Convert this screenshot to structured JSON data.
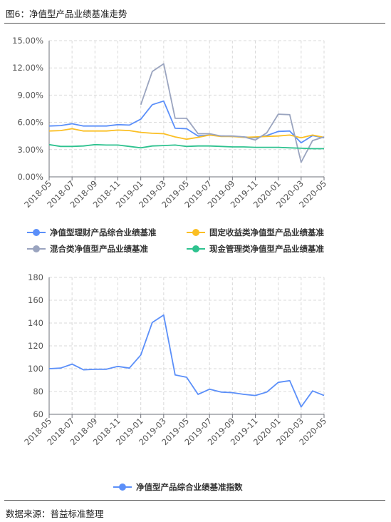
{
  "header": {
    "title": "图6：净值型产品业绩基准走势"
  },
  "footer": {
    "source": "数据来源：普益标准整理"
  },
  "colors": {
    "blue": "#5b8ff9",
    "yellow": "#fbbf24",
    "gray": "#9aa4bf",
    "green": "#2ec28f",
    "grid": "#d9d9d9",
    "axis": "#6e7079"
  },
  "chart_data": [
    {
      "type": "line",
      "categories": [
        "2018-05",
        "2018-06",
        "2018-07",
        "2018-08",
        "2018-09",
        "2018-10",
        "2018-11",
        "2018-12",
        "2019-01",
        "2019-02",
        "2019-03",
        "2019-04",
        "2019-05",
        "2019-06",
        "2019-07",
        "2019-08",
        "2019-09",
        "2019-10",
        "2019-11",
        "2019-12",
        "2020-01",
        "2020-02",
        "2020-03",
        "2020-04",
        "2020-05"
      ],
      "tick_labels": [
        "2018-05",
        "2018-07",
        "2018-09",
        "2018-11",
        "2019-01",
        "2019-03",
        "2019-05",
        "2019-07",
        "2019-09",
        "2019-11",
        "2020-01",
        "2020-03",
        "2020-05"
      ],
      "y_ticks": [
        "0.00%",
        "3.00%",
        "6.00%",
        "9.00%",
        "12.00%",
        "15.00%"
      ],
      "ylim": [
        0,
        15
      ],
      "grid": true,
      "legend_position": "bottom",
      "series": [
        {
          "name": "净值型理财产品综合业绩基准",
          "color": "blue",
          "values": [
            5.6,
            5.65,
            5.85,
            5.6,
            5.6,
            5.6,
            5.75,
            5.7,
            6.35,
            7.95,
            8.35,
            5.35,
            5.3,
            4.5,
            4.6,
            4.5,
            4.45,
            4.4,
            4.3,
            4.55,
            5.0,
            5.05,
            3.75,
            4.55,
            4.3
          ]
        },
        {
          "name": "固定收益类净值型产品业绩基准",
          "color": "yellow",
          "values": [
            5.05,
            5.1,
            5.3,
            5.05,
            5.05,
            5.05,
            5.15,
            5.1,
            4.9,
            4.8,
            4.75,
            4.4,
            4.15,
            4.35,
            4.6,
            4.45,
            4.45,
            4.35,
            4.4,
            4.45,
            4.5,
            4.6,
            4.3,
            4.6,
            4.35
          ]
        },
        {
          "name": "混合类净值型产品业绩基准",
          "color": "gray",
          "values": [
            null,
            null,
            null,
            null,
            null,
            null,
            null,
            null,
            7.95,
            11.6,
            12.45,
            6.45,
            6.45,
            4.75,
            4.75,
            4.5,
            4.5,
            4.4,
            4.05,
            4.85,
            6.9,
            6.85,
            1.6,
            4.0,
            4.4
          ]
        },
        {
          "name": "现金管理类净值型产品业绩基准",
          "color": "green",
          "values": [
            3.55,
            3.35,
            3.35,
            3.4,
            3.55,
            3.5,
            3.5,
            3.35,
            3.2,
            3.4,
            3.45,
            3.5,
            3.35,
            3.4,
            3.4,
            3.35,
            3.3,
            3.3,
            3.25,
            3.25,
            3.25,
            3.2,
            3.15,
            3.1,
            3.1
          ]
        }
      ]
    },
    {
      "type": "line",
      "categories": [
        "2018-05",
        "2018-06",
        "2018-07",
        "2018-08",
        "2018-09",
        "2018-10",
        "2018-11",
        "2018-12",
        "2019-01",
        "2019-02",
        "2019-03",
        "2019-04",
        "2019-05",
        "2019-06",
        "2019-07",
        "2019-08",
        "2019-09",
        "2019-10",
        "2019-11",
        "2019-12",
        "2020-01",
        "2020-02",
        "2020-03",
        "2020-04",
        "2020-05"
      ],
      "tick_labels": [
        "2018-05",
        "2018-07",
        "2018-09",
        "2018-11",
        "2019-01",
        "2019-03",
        "2019-05",
        "2019-07",
        "2019-09",
        "2019-11",
        "2020-01",
        "2020-03",
        "2020-05"
      ],
      "y_ticks": [
        "60",
        "80",
        "100",
        "120",
        "140",
        "160",
        "180"
      ],
      "ylim": [
        60,
        180
      ],
      "grid": true,
      "legend_position": "bottom",
      "series": [
        {
          "name": "净值型产品综合业绩基准指数",
          "color": "blue",
          "values": [
            100,
            100.5,
            104,
            99,
            99.5,
            99.5,
            102,
            100.5,
            112,
            140.5,
            147,
            94.5,
            92.5,
            77.5,
            82,
            79.5,
            79,
            77.5,
            76.5,
            79.5,
            88,
            89.5,
            66.5,
            80.5,
            76.5
          ]
        }
      ]
    }
  ]
}
